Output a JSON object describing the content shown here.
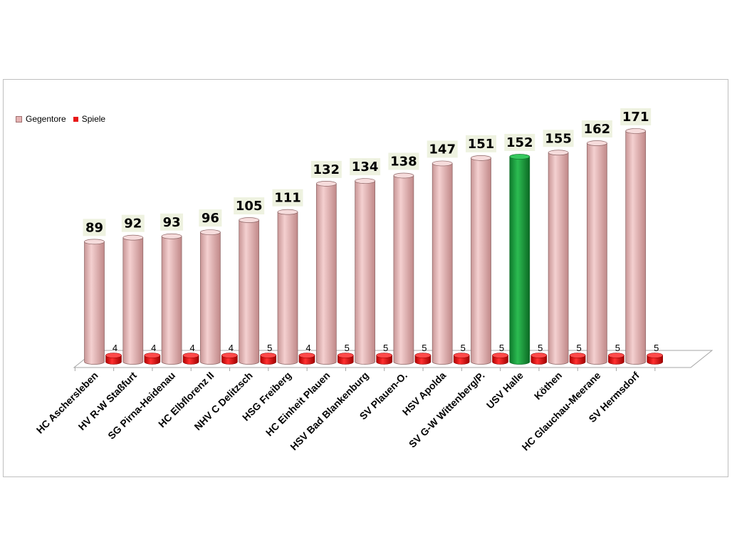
{
  "chart_data": {
    "type": "bar",
    "title": "",
    "xlabel": "",
    "ylabel": "",
    "categories": [
      "HC Aschersleben",
      "HV R-W Staßfurt",
      "SG Pirna-Heidenau",
      "HC Elbflorenz II",
      "NHV C Delitzsch",
      "HSG Freiberg",
      "HC Einheit Plauen",
      "HSV Bad Blankenburg",
      "SV Plauen-O.",
      "HSV Apolda",
      "SV G-W Wittenberg/P.",
      "USV Halle",
      "Köthen",
      "HC Glauchau-Meerane",
      "SV Hermsdorf"
    ],
    "series": [
      {
        "name": "Gegentore",
        "values": [
          89,
          92,
          93,
          96,
          105,
          111,
          132,
          134,
          138,
          147,
          151,
          152,
          155,
          162,
          171
        ]
      },
      {
        "name": "Spiele",
        "values": [
          4,
          4,
          4,
          4,
          5,
          4,
          5,
          5,
          5,
          5,
          5,
          5,
          5,
          5,
          5
        ]
      }
    ],
    "legend_position": "top-left",
    "grid": false,
    "highlighted_category": "USV Halle",
    "colors": {
      "gegentore": "#e6b4b4",
      "gegentore_dark": "#c48c8c",
      "highlight": "#1e9a3c",
      "highlight_dark": "#0f6e28",
      "spiele": "#e81818",
      "label_bg": "#eef2e0"
    }
  }
}
